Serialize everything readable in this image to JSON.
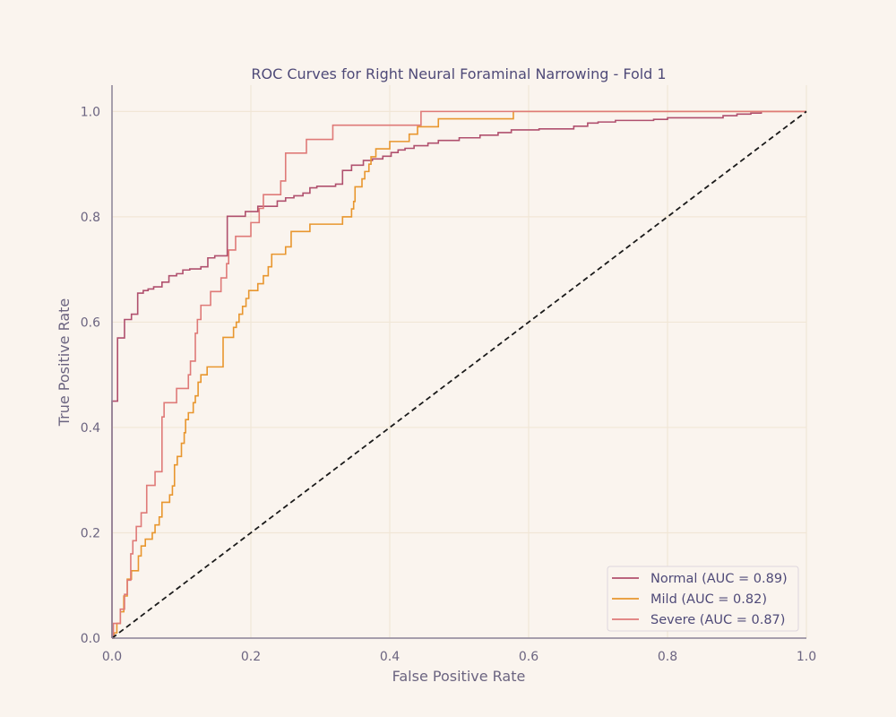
{
  "chart_data": {
    "type": "line",
    "title": "ROC Curves for Right Neural Foraminal Narrowing - Fold 1",
    "xlabel": "False Positive Rate",
    "ylabel": "True Positive Rate",
    "xlim": [
      0,
      1
    ],
    "ylim": [
      0,
      1.05
    ],
    "xticks": [
      "0.0",
      "0.2",
      "0.4",
      "0.6",
      "0.8",
      "1.0"
    ],
    "yticks": [
      "0.0",
      "0.2",
      "0.4",
      "0.6",
      "0.8",
      "1.0"
    ],
    "grid": true,
    "legend_position": "bottom-right",
    "background": "#faf4ee",
    "series": [
      {
        "name": "Normal (AUC = 0.89)",
        "color": "#b0506e",
        "points": [
          [
            0,
            0
          ],
          [
            0,
            0.45
          ],
          [
            0.008,
            0.45
          ],
          [
            0.008,
            0.57
          ],
          [
            0.018,
            0.57
          ],
          [
            0.018,
            0.605
          ],
          [
            0.028,
            0.605
          ],
          [
            0.028,
            0.615
          ],
          [
            0.037,
            0.615
          ],
          [
            0.037,
            0.655
          ],
          [
            0.045,
            0.655
          ],
          [
            0.045,
            0.66
          ],
          [
            0.052,
            0.66
          ],
          [
            0.052,
            0.663
          ],
          [
            0.06,
            0.663
          ],
          [
            0.06,
            0.667
          ],
          [
            0.072,
            0.667
          ],
          [
            0.072,
            0.676
          ],
          [
            0.082,
            0.676
          ],
          [
            0.082,
            0.688
          ],
          [
            0.093,
            0.688
          ],
          [
            0.093,
            0.692
          ],
          [
            0.102,
            0.692
          ],
          [
            0.102,
            0.699
          ],
          [
            0.112,
            0.699
          ],
          [
            0.112,
            0.701
          ],
          [
            0.128,
            0.701
          ],
          [
            0.128,
            0.705
          ],
          [
            0.138,
            0.705
          ],
          [
            0.138,
            0.722
          ],
          [
            0.148,
            0.722
          ],
          [
            0.148,
            0.726
          ],
          [
            0.166,
            0.726
          ],
          [
            0.166,
            0.801
          ],
          [
            0.192,
            0.801
          ],
          [
            0.192,
            0.81
          ],
          [
            0.21,
            0.81
          ],
          [
            0.21,
            0.82
          ],
          [
            0.238,
            0.82
          ],
          [
            0.238,
            0.83
          ],
          [
            0.25,
            0.83
          ],
          [
            0.25,
            0.836
          ],
          [
            0.262,
            0.836
          ],
          [
            0.262,
            0.84
          ],
          [
            0.275,
            0.84
          ],
          [
            0.275,
            0.845
          ],
          [
            0.285,
            0.845
          ],
          [
            0.285,
            0.855
          ],
          [
            0.295,
            0.855
          ],
          [
            0.295,
            0.858
          ],
          [
            0.322,
            0.858
          ],
          [
            0.322,
            0.862
          ],
          [
            0.332,
            0.862
          ],
          [
            0.332,
            0.888
          ],
          [
            0.345,
            0.888
          ],
          [
            0.345,
            0.898
          ],
          [
            0.362,
            0.898
          ],
          [
            0.362,
            0.907
          ],
          [
            0.375,
            0.907
          ],
          [
            0.375,
            0.91
          ],
          [
            0.39,
            0.91
          ],
          [
            0.39,
            0.915
          ],
          [
            0.402,
            0.915
          ],
          [
            0.402,
            0.922
          ],
          [
            0.412,
            0.922
          ],
          [
            0.412,
            0.927
          ],
          [
            0.422,
            0.927
          ],
          [
            0.422,
            0.93
          ],
          [
            0.435,
            0.93
          ],
          [
            0.435,
            0.935
          ],
          [
            0.455,
            0.935
          ],
          [
            0.455,
            0.94
          ],
          [
            0.47,
            0.94
          ],
          [
            0.47,
            0.945
          ],
          [
            0.5,
            0.945
          ],
          [
            0.5,
            0.95
          ],
          [
            0.53,
            0.95
          ],
          [
            0.53,
            0.955
          ],
          [
            0.556,
            0.955
          ],
          [
            0.556,
            0.96
          ],
          [
            0.575,
            0.96
          ],
          [
            0.575,
            0.965
          ],
          [
            0.615,
            0.965
          ],
          [
            0.615,
            0.967
          ],
          [
            0.665,
            0.967
          ],
          [
            0.665,
            0.972
          ],
          [
            0.685,
            0.972
          ],
          [
            0.685,
            0.978
          ],
          [
            0.7,
            0.978
          ],
          [
            0.7,
            0.98
          ],
          [
            0.725,
            0.98
          ],
          [
            0.725,
            0.983
          ],
          [
            0.78,
            0.983
          ],
          [
            0.78,
            0.985
          ],
          [
            0.8,
            0.985
          ],
          [
            0.8,
            0.988
          ],
          [
            0.88,
            0.988
          ],
          [
            0.88,
            0.992
          ],
          [
            0.9,
            0.992
          ],
          [
            0.9,
            0.995
          ],
          [
            0.92,
            0.995
          ],
          [
            0.92,
            0.997
          ],
          [
            0.935,
            0.997
          ],
          [
            0.935,
            1.0
          ],
          [
            1,
            1.0
          ]
        ]
      },
      {
        "name": "Mild (AUC = 0.82)",
        "color": "#e8962e",
        "points": [
          [
            0,
            0
          ],
          [
            0.003,
            0
          ],
          [
            0.003,
            0.01
          ],
          [
            0.007,
            0.01
          ],
          [
            0.007,
            0.028
          ],
          [
            0.012,
            0.028
          ],
          [
            0.012,
            0.05
          ],
          [
            0.017,
            0.05
          ],
          [
            0.017,
            0.08
          ],
          [
            0.022,
            0.08
          ],
          [
            0.022,
            0.112
          ],
          [
            0.028,
            0.112
          ],
          [
            0.028,
            0.128
          ],
          [
            0.038,
            0.128
          ],
          [
            0.038,
            0.156
          ],
          [
            0.042,
            0.156
          ],
          [
            0.042,
            0.175
          ],
          [
            0.048,
            0.175
          ],
          [
            0.048,
            0.188
          ],
          [
            0.058,
            0.188
          ],
          [
            0.058,
            0.2
          ],
          [
            0.062,
            0.2
          ],
          [
            0.062,
            0.215
          ],
          [
            0.068,
            0.215
          ],
          [
            0.068,
            0.23
          ],
          [
            0.072,
            0.23
          ],
          [
            0.072,
            0.258
          ],
          [
            0.083,
            0.258
          ],
          [
            0.083,
            0.272
          ],
          [
            0.087,
            0.272
          ],
          [
            0.087,
            0.289
          ],
          [
            0.09,
            0.289
          ],
          [
            0.09,
            0.329
          ],
          [
            0.094,
            0.329
          ],
          [
            0.094,
            0.345
          ],
          [
            0.1,
            0.345
          ],
          [
            0.1,
            0.37
          ],
          [
            0.104,
            0.37
          ],
          [
            0.104,
            0.39
          ],
          [
            0.106,
            0.39
          ],
          [
            0.106,
            0.415
          ],
          [
            0.11,
            0.415
          ],
          [
            0.11,
            0.428
          ],
          [
            0.117,
            0.428
          ],
          [
            0.117,
            0.447
          ],
          [
            0.12,
            0.447
          ],
          [
            0.12,
            0.46
          ],
          [
            0.124,
            0.46
          ],
          [
            0.124,
            0.486
          ],
          [
            0.128,
            0.486
          ],
          [
            0.128,
            0.5
          ],
          [
            0.137,
            0.5
          ],
          [
            0.137,
            0.515
          ],
          [
            0.16,
            0.515
          ],
          [
            0.16,
            0.571
          ],
          [
            0.175,
            0.571
          ],
          [
            0.175,
            0.59
          ],
          [
            0.179,
            0.59
          ],
          [
            0.179,
            0.6
          ],
          [
            0.183,
            0.6
          ],
          [
            0.183,
            0.615
          ],
          [
            0.188,
            0.615
          ],
          [
            0.188,
            0.63
          ],
          [
            0.193,
            0.63
          ],
          [
            0.193,
            0.645
          ],
          [
            0.197,
            0.645
          ],
          [
            0.197,
            0.66
          ],
          [
            0.21,
            0.66
          ],
          [
            0.21,
            0.673
          ],
          [
            0.218,
            0.673
          ],
          [
            0.218,
            0.688
          ],
          [
            0.225,
            0.688
          ],
          [
            0.225,
            0.705
          ],
          [
            0.23,
            0.705
          ],
          [
            0.23,
            0.729
          ],
          [
            0.25,
            0.729
          ],
          [
            0.25,
            0.743
          ],
          [
            0.258,
            0.743
          ],
          [
            0.258,
            0.772
          ],
          [
            0.285,
            0.772
          ],
          [
            0.285,
            0.786
          ],
          [
            0.332,
            0.786
          ],
          [
            0.332,
            0.8
          ],
          [
            0.345,
            0.8
          ],
          [
            0.345,
            0.815
          ],
          [
            0.348,
            0.815
          ],
          [
            0.348,
            0.829
          ],
          [
            0.35,
            0.829
          ],
          [
            0.35,
            0.857
          ],
          [
            0.36,
            0.857
          ],
          [
            0.36,
            0.872
          ],
          [
            0.364,
            0.872
          ],
          [
            0.364,
            0.886
          ],
          [
            0.37,
            0.886
          ],
          [
            0.37,
            0.9
          ],
          [
            0.373,
            0.9
          ],
          [
            0.373,
            0.914
          ],
          [
            0.38,
            0.914
          ],
          [
            0.38,
            0.929
          ],
          [
            0.4,
            0.929
          ],
          [
            0.4,
            0.943
          ],
          [
            0.428,
            0.943
          ],
          [
            0.428,
            0.957
          ],
          [
            0.44,
            0.957
          ],
          [
            0.44,
            0.971
          ],
          [
            0.47,
            0.971
          ],
          [
            0.47,
            0.986
          ],
          [
            0.578,
            0.986
          ],
          [
            0.578,
            1.0
          ],
          [
            1,
            1.0
          ]
        ]
      },
      {
        "name": "Severe (AUC = 0.87)",
        "color": "#df7a78",
        "points": [
          [
            0,
            0
          ],
          [
            0.002,
            0
          ],
          [
            0.002,
            0.028
          ],
          [
            0.012,
            0.028
          ],
          [
            0.012,
            0.055
          ],
          [
            0.018,
            0.055
          ],
          [
            0.018,
            0.083
          ],
          [
            0.022,
            0.083
          ],
          [
            0.022,
            0.11
          ],
          [
            0.027,
            0.11
          ],
          [
            0.027,
            0.16
          ],
          [
            0.03,
            0.16
          ],
          [
            0.03,
            0.185
          ],
          [
            0.035,
            0.185
          ],
          [
            0.035,
            0.212
          ],
          [
            0.042,
            0.212
          ],
          [
            0.042,
            0.238
          ],
          [
            0.05,
            0.238
          ],
          [
            0.05,
            0.29
          ],
          [
            0.062,
            0.29
          ],
          [
            0.062,
            0.316
          ],
          [
            0.072,
            0.316
          ],
          [
            0.072,
            0.42
          ],
          [
            0.075,
            0.42
          ],
          [
            0.075,
            0.447
          ],
          [
            0.093,
            0.447
          ],
          [
            0.093,
            0.474
          ],
          [
            0.11,
            0.474
          ],
          [
            0.11,
            0.5
          ],
          [
            0.113,
            0.5
          ],
          [
            0.113,
            0.526
          ],
          [
            0.12,
            0.526
          ],
          [
            0.12,
            0.579
          ],
          [
            0.123,
            0.579
          ],
          [
            0.123,
            0.605
          ],
          [
            0.128,
            0.605
          ],
          [
            0.128,
            0.632
          ],
          [
            0.142,
            0.632
          ],
          [
            0.142,
            0.658
          ],
          [
            0.157,
            0.658
          ],
          [
            0.157,
            0.684
          ],
          [
            0.165,
            0.684
          ],
          [
            0.165,
            0.711
          ],
          [
            0.168,
            0.711
          ],
          [
            0.168,
            0.737
          ],
          [
            0.178,
            0.737
          ],
          [
            0.178,
            0.763
          ],
          [
            0.2,
            0.763
          ],
          [
            0.2,
            0.789
          ],
          [
            0.212,
            0.789
          ],
          [
            0.212,
            0.816
          ],
          [
            0.218,
            0.816
          ],
          [
            0.218,
            0.842
          ],
          [
            0.243,
            0.842
          ],
          [
            0.243,
            0.868
          ],
          [
            0.25,
            0.868
          ],
          [
            0.25,
            0.921
          ],
          [
            0.28,
            0.921
          ],
          [
            0.28,
            0.947
          ],
          [
            0.318,
            0.947
          ],
          [
            0.318,
            0.974
          ],
          [
            0.445,
            0.974
          ],
          [
            0.445,
            1.0
          ],
          [
            1,
            1.0
          ]
        ]
      },
      {
        "name": "",
        "color": "#1a1a1a",
        "dashed": true,
        "points": [
          [
            0,
            0
          ],
          [
            1,
            1
          ]
        ]
      }
    ]
  }
}
